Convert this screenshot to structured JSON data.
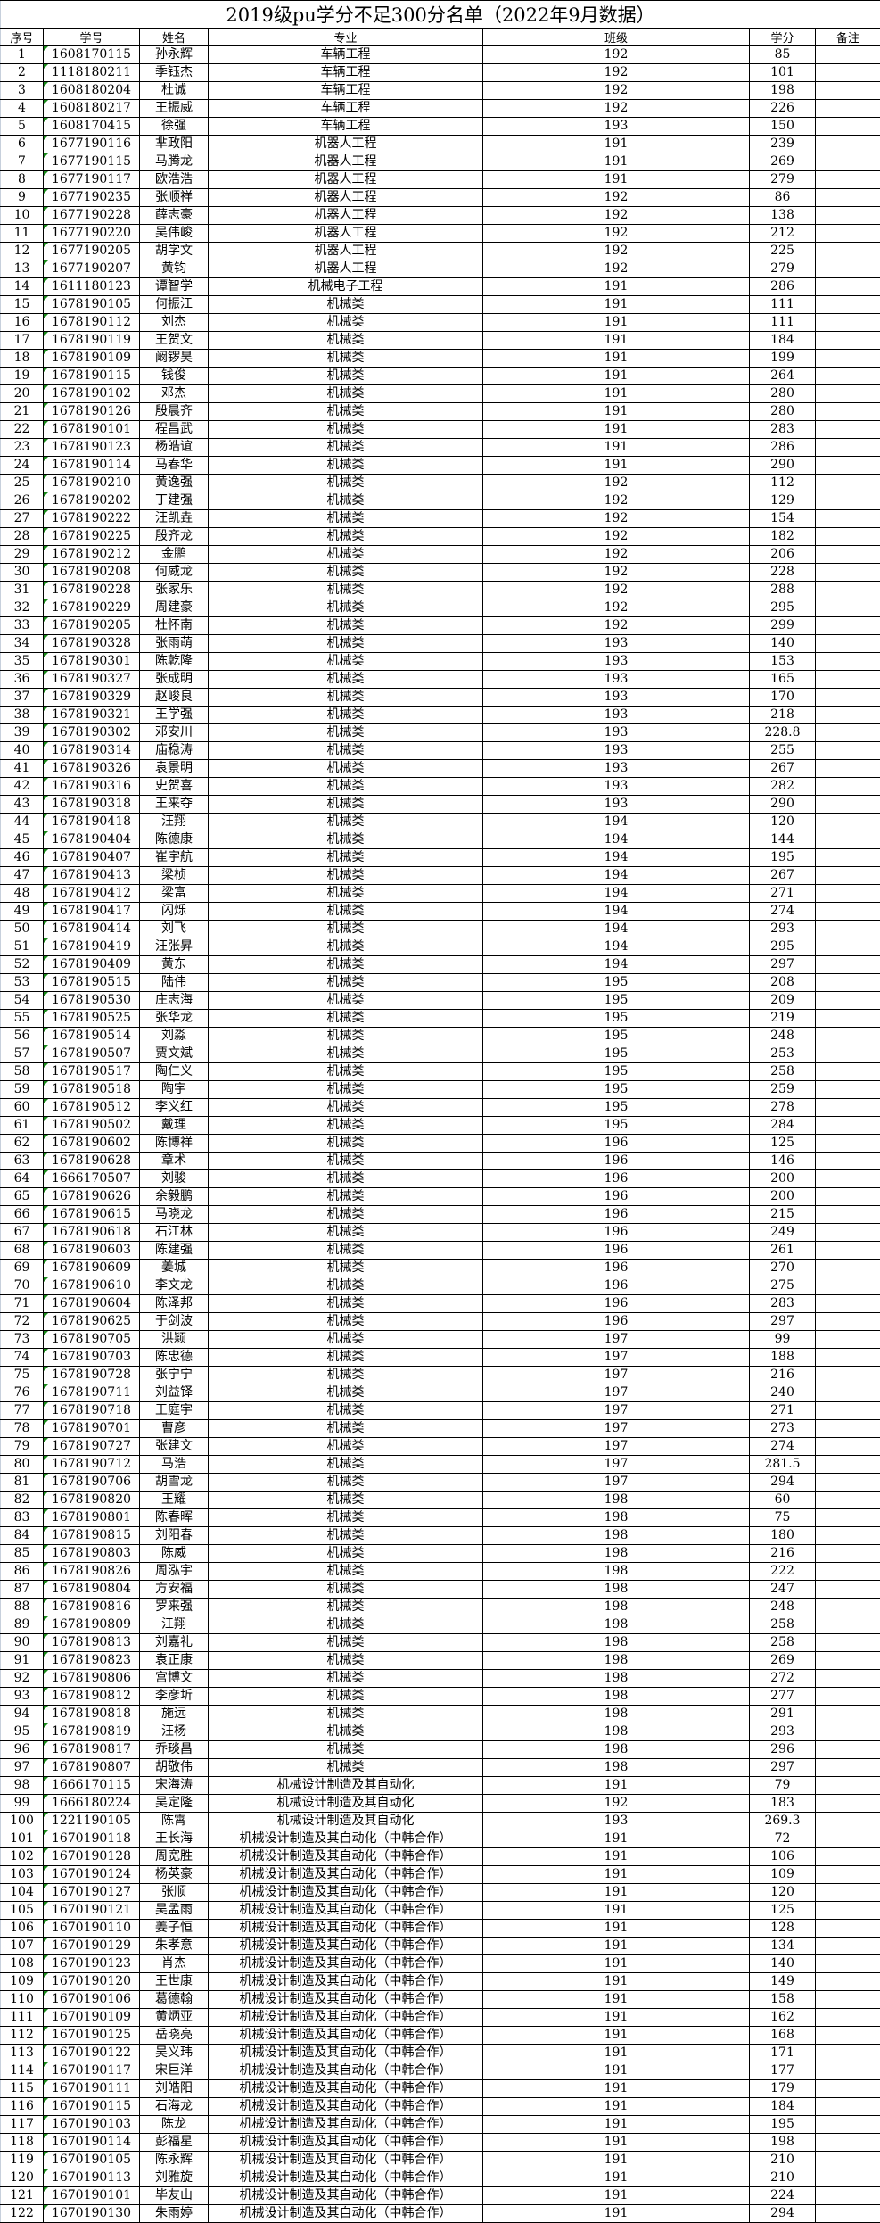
{
  "title": "2019级pu学分不足300分名单（2022年9月数据）",
  "headers": [
    "序号",
    "学号",
    "姓名",
    "专业",
    "班级",
    "学分",
    "备注"
  ],
  "rows": [
    [
      "1",
      "1608170115",
      "孙永辉",
      "车辆工程",
      "192",
      "85",
      ""
    ],
    [
      "2",
      "1118180211",
      "季钰杰",
      "车辆工程",
      "192",
      "101",
      ""
    ],
    [
      "3",
      "1608180204",
      "杜诚",
      "车辆工程",
      "192",
      "198",
      ""
    ],
    [
      "4",
      "1608180217",
      "王振威",
      "车辆工程",
      "192",
      "226",
      ""
    ],
    [
      "5",
      "1608170415",
      "徐强",
      "车辆工程",
      "193",
      "150",
      ""
    ],
    [
      "6",
      "1677190116",
      "芈政阳",
      "机器人工程",
      "191",
      "239",
      ""
    ],
    [
      "7",
      "1677190115",
      "马腾龙",
      "机器人工程",
      "191",
      "269",
      ""
    ],
    [
      "8",
      "1677190117",
      "欧浩浩",
      "机器人工程",
      "191",
      "279",
      ""
    ],
    [
      "9",
      "1677190235",
      "张顺祥",
      "机器人工程",
      "192",
      "86",
      ""
    ],
    [
      "10",
      "1677190228",
      "薛志豪",
      "机器人工程",
      "192",
      "138",
      ""
    ],
    [
      "11",
      "1677190220",
      "吴伟峻",
      "机器人工程",
      "192",
      "212",
      ""
    ],
    [
      "12",
      "1677190205",
      "胡学文",
      "机器人工程",
      "192",
      "225",
      ""
    ],
    [
      "13",
      "1677190207",
      "黄钧",
      "机器人工程",
      "192",
      "279",
      ""
    ],
    [
      "14",
      "1611180123",
      "谭智学",
      "机械电子工程",
      "191",
      "286",
      ""
    ],
    [
      "15",
      "1678190105",
      "何振江",
      "机械类",
      "191",
      "111",
      ""
    ],
    [
      "16",
      "1678190112",
      "刘杰",
      "机械类",
      "191",
      "111",
      ""
    ],
    [
      "17",
      "1678190119",
      "王贺文",
      "机械类",
      "191",
      "184",
      ""
    ],
    [
      "18",
      "1678190109",
      "阚锣昊",
      "机械类",
      "191",
      "199",
      ""
    ],
    [
      "19",
      "1678190115",
      "钱俊",
      "机械类",
      "191",
      "264",
      ""
    ],
    [
      "20",
      "1678190102",
      "邓杰",
      "机械类",
      "191",
      "280",
      ""
    ],
    [
      "21",
      "1678190126",
      "殷晨齐",
      "机械类",
      "191",
      "280",
      ""
    ],
    [
      "22",
      "1678190101",
      "程昌武",
      "机械类",
      "191",
      "283",
      ""
    ],
    [
      "23",
      "1678190123",
      "杨皓谊",
      "机械类",
      "191",
      "286",
      ""
    ],
    [
      "24",
      "1678190114",
      "马春华",
      "机械类",
      "191",
      "290",
      ""
    ],
    [
      "25",
      "1678190210",
      "黄逸强",
      "机械类",
      "192",
      "112",
      ""
    ],
    [
      "26",
      "1678190202",
      "丁建强",
      "机械类",
      "192",
      "129",
      ""
    ],
    [
      "27",
      "1678190222",
      "汪凯垚",
      "机械类",
      "192",
      "154",
      ""
    ],
    [
      "28",
      "1678190225",
      "殷齐龙",
      "机械类",
      "192",
      "182",
      ""
    ],
    [
      "29",
      "1678190212",
      "金鹏",
      "机械类",
      "192",
      "206",
      ""
    ],
    [
      "30",
      "1678190208",
      "何威龙",
      "机械类",
      "192",
      "228",
      ""
    ],
    [
      "31",
      "1678190228",
      "张家乐",
      "机械类",
      "192",
      "288",
      ""
    ],
    [
      "32",
      "1678190229",
      "周建豪",
      "机械类",
      "192",
      "295",
      ""
    ],
    [
      "33",
      "1678190205",
      "杜怀南",
      "机械类",
      "192",
      "299",
      ""
    ],
    [
      "34",
      "1678190328",
      "张雨萌",
      "机械类",
      "193",
      "140",
      ""
    ],
    [
      "35",
      "1678190301",
      "陈乾隆",
      "机械类",
      "193",
      "153",
      ""
    ],
    [
      "36",
      "1678190327",
      "张成明",
      "机械类",
      "193",
      "165",
      ""
    ],
    [
      "37",
      "1678190329",
      "赵峻良",
      "机械类",
      "193",
      "170",
      ""
    ],
    [
      "38",
      "1678190321",
      "王学强",
      "机械类",
      "193",
      "218",
      ""
    ],
    [
      "39",
      "1678190302",
      "邓安川",
      "机械类",
      "193",
      "228.8",
      ""
    ],
    [
      "40",
      "1678190314",
      "庙稳涛",
      "机械类",
      "193",
      "255",
      ""
    ],
    [
      "41",
      "1678190326",
      "袁景明",
      "机械类",
      "193",
      "267",
      ""
    ],
    [
      "42",
      "1678190316",
      "史贺喜",
      "机械类",
      "193",
      "282",
      ""
    ],
    [
      "43",
      "1678190318",
      "王来夺",
      "机械类",
      "193",
      "290",
      ""
    ],
    [
      "44",
      "1678190418",
      "汪翔",
      "机械类",
      "194",
      "120",
      ""
    ],
    [
      "45",
      "1678190404",
      "陈德康",
      "机械类",
      "194",
      "144",
      ""
    ],
    [
      "46",
      "1678190407",
      "崔宇航",
      "机械类",
      "194",
      "195",
      ""
    ],
    [
      "47",
      "1678190413",
      "梁桢",
      "机械类",
      "194",
      "267",
      ""
    ],
    [
      "48",
      "1678190412",
      "梁富",
      "机械类",
      "194",
      "271",
      ""
    ],
    [
      "49",
      "1678190417",
      "闪烁",
      "机械类",
      "194",
      "274",
      ""
    ],
    [
      "50",
      "1678190414",
      "刘飞",
      "机械类",
      "194",
      "293",
      ""
    ],
    [
      "51",
      "1678190419",
      "汪张昇",
      "机械类",
      "194",
      "295",
      ""
    ],
    [
      "52",
      "1678190409",
      "黄东",
      "机械类",
      "194",
      "297",
      ""
    ],
    [
      "53",
      "1678190515",
      "陆伟",
      "机械类",
      "195",
      "208",
      ""
    ],
    [
      "54",
      "1678190530",
      "庄志海",
      "机械类",
      "195",
      "209",
      ""
    ],
    [
      "55",
      "1678190525",
      "张华龙",
      "机械类",
      "195",
      "219",
      ""
    ],
    [
      "56",
      "1678190514",
      "刘淼",
      "机械类",
      "195",
      "248",
      ""
    ],
    [
      "57",
      "1678190507",
      "贾文斌",
      "机械类",
      "195",
      "253",
      ""
    ],
    [
      "58",
      "1678190517",
      "陶仁义",
      "机械类",
      "195",
      "258",
      ""
    ],
    [
      "59",
      "1678190518",
      "陶宇",
      "机械类",
      "195",
      "259",
      ""
    ],
    [
      "60",
      "1678190512",
      "李义红",
      "机械类",
      "195",
      "278",
      ""
    ],
    [
      "61",
      "1678190502",
      "戴理",
      "机械类",
      "195",
      "284",
      ""
    ],
    [
      "62",
      "1678190602",
      "陈博祥",
      "机械类",
      "196",
      "125",
      ""
    ],
    [
      "63",
      "1678190628",
      "章术",
      "机械类",
      "196",
      "146",
      ""
    ],
    [
      "64",
      "1666170507",
      "刘骏",
      "机械类",
      "196",
      "200",
      ""
    ],
    [
      "65",
      "1678190626",
      "余毅鹏",
      "机械类",
      "196",
      "200",
      ""
    ],
    [
      "66",
      "1678190615",
      "马晓龙",
      "机械类",
      "196",
      "215",
      ""
    ],
    [
      "67",
      "1678190618",
      "石江林",
      "机械类",
      "196",
      "249",
      ""
    ],
    [
      "68",
      "1678190603",
      "陈建强",
      "机械类",
      "196",
      "261",
      ""
    ],
    [
      "69",
      "1678190609",
      "姜城",
      "机械类",
      "196",
      "270",
      ""
    ],
    [
      "70",
      "1678190610",
      "李文龙",
      "机械类",
      "196",
      "275",
      ""
    ],
    [
      "71",
      "1678190604",
      "陈泽邦",
      "机械类",
      "196",
      "283",
      ""
    ],
    [
      "72",
      "1678190625",
      "于剑波",
      "机械类",
      "196",
      "297",
      ""
    ],
    [
      "73",
      "1678190705",
      "洪颖",
      "机械类",
      "197",
      "99",
      ""
    ],
    [
      "74",
      "1678190703",
      "陈忠德",
      "机械类",
      "197",
      "188",
      ""
    ],
    [
      "75",
      "1678190728",
      "张宁宁",
      "机械类",
      "197",
      "216",
      ""
    ],
    [
      "76",
      "1678190711",
      "刘益铎",
      "机械类",
      "197",
      "240",
      ""
    ],
    [
      "77",
      "1678190718",
      "王庭宇",
      "机械类",
      "197",
      "271",
      ""
    ],
    [
      "78",
      "1678190701",
      "曹彦",
      "机械类",
      "197",
      "273",
      ""
    ],
    [
      "79",
      "1678190727",
      "张建文",
      "机械类",
      "197",
      "274",
      ""
    ],
    [
      "80",
      "1678190712",
      "马浩",
      "机械类",
      "197",
      "281.5",
      ""
    ],
    [
      "81",
      "1678190706",
      "胡雪龙",
      "机械类",
      "197",
      "294",
      ""
    ],
    [
      "82",
      "1678190820",
      "王耀",
      "机械类",
      "198",
      "60",
      ""
    ],
    [
      "83",
      "1678190801",
      "陈春晖",
      "机械类",
      "198",
      "75",
      ""
    ],
    [
      "84",
      "1678190815",
      "刘阳春",
      "机械类",
      "198",
      "180",
      ""
    ],
    [
      "85",
      "1678190803",
      "陈威",
      "机械类",
      "198",
      "216",
      ""
    ],
    [
      "86",
      "1678190826",
      "周泓宇",
      "机械类",
      "198",
      "222",
      ""
    ],
    [
      "87",
      "1678190804",
      "方安福",
      "机械类",
      "198",
      "247",
      ""
    ],
    [
      "88",
      "1678190816",
      "罗来强",
      "机械类",
      "198",
      "248",
      ""
    ],
    [
      "89",
      "1678190809",
      "江翔",
      "机械类",
      "198",
      "258",
      ""
    ],
    [
      "90",
      "1678190813",
      "刘嘉礼",
      "机械类",
      "198",
      "258",
      ""
    ],
    [
      "91",
      "1678190823",
      "袁正康",
      "机械类",
      "198",
      "269",
      ""
    ],
    [
      "92",
      "1678190806",
      "宫博文",
      "机械类",
      "198",
      "272",
      ""
    ],
    [
      "93",
      "1678190812",
      "李彦圻",
      "机械类",
      "198",
      "277",
      ""
    ],
    [
      "94",
      "1678190818",
      "施远",
      "机械类",
      "198",
      "291",
      ""
    ],
    [
      "95",
      "1678190819",
      "汪杨",
      "机械类",
      "198",
      "293",
      ""
    ],
    [
      "96",
      "1678190817",
      "乔琰昌",
      "机械类",
      "198",
      "296",
      ""
    ],
    [
      "97",
      "1678190807",
      "胡敬伟",
      "机械类",
      "198",
      "297",
      ""
    ],
    [
      "98",
      "1666170115",
      "宋海涛",
      "机械设计制造及其自动化",
      "191",
      "79",
      ""
    ],
    [
      "99",
      "1666180224",
      "吴定隆",
      "机械设计制造及其自动化",
      "192",
      "183",
      ""
    ],
    [
      "100",
      "1221190105",
      "陈霄",
      "机械设计制造及其自动化",
      "193",
      "269.3",
      ""
    ],
    [
      "101",
      "1670190118",
      "王长海",
      "机械设计制造及其自动化（中韩合作）",
      "191",
      "72",
      ""
    ],
    [
      "102",
      "1670190128",
      "周宽胜",
      "机械设计制造及其自动化（中韩合作）",
      "191",
      "106",
      ""
    ],
    [
      "103",
      "1670190124",
      "杨英豪",
      "机械设计制造及其自动化（中韩合作）",
      "191",
      "109",
      ""
    ],
    [
      "104",
      "1670190127",
      "张顺",
      "机械设计制造及其自动化（中韩合作）",
      "191",
      "120",
      ""
    ],
    [
      "105",
      "1670190121",
      "吴孟雨",
      "机械设计制造及其自动化（中韩合作）",
      "191",
      "125",
      ""
    ],
    [
      "106",
      "1670190110",
      "姜子恒",
      "机械设计制造及其自动化（中韩合作）",
      "191",
      "128",
      ""
    ],
    [
      "107",
      "1670190129",
      "朱孝意",
      "机械设计制造及其自动化（中韩合作）",
      "191",
      "134",
      ""
    ],
    [
      "108",
      "1670190123",
      "肖杰",
      "机械设计制造及其自动化（中韩合作）",
      "191",
      "140",
      ""
    ],
    [
      "109",
      "1670190120",
      "王世康",
      "机械设计制造及其自动化（中韩合作）",
      "191",
      "149",
      ""
    ],
    [
      "110",
      "1670190106",
      "葛德翰",
      "机械设计制造及其自动化（中韩合作）",
      "191",
      "158",
      ""
    ],
    [
      "111",
      "1670190109",
      "黄炳亚",
      "机械设计制造及其自动化（中韩合作）",
      "191",
      "162",
      ""
    ],
    [
      "112",
      "1670190125",
      "岳晓亮",
      "机械设计制造及其自动化（中韩合作）",
      "191",
      "168",
      ""
    ],
    [
      "113",
      "1670190122",
      "吴义玮",
      "机械设计制造及其自动化（中韩合作）",
      "191",
      "171",
      ""
    ],
    [
      "114",
      "1670190117",
      "宋巨洋",
      "机械设计制造及其自动化（中韩合作）",
      "191",
      "177",
      ""
    ],
    [
      "115",
      "1670190111",
      "刘皓阳",
      "机械设计制造及其自动化（中韩合作）",
      "191",
      "179",
      ""
    ],
    [
      "116",
      "1670190115",
      "石海龙",
      "机械设计制造及其自动化（中韩合作）",
      "191",
      "184",
      ""
    ],
    [
      "117",
      "1670190103",
      "陈龙",
      "机械设计制造及其自动化（中韩合作）",
      "191",
      "195",
      ""
    ],
    [
      "118",
      "1670190114",
      "彭福星",
      "机械设计制造及其自动化（中韩合作）",
      "191",
      "198",
      ""
    ],
    [
      "119",
      "1670190105",
      "陈永辉",
      "机械设计制造及其自动化（中韩合作）",
      "191",
      "210",
      ""
    ],
    [
      "120",
      "1670190113",
      "刘雅旋",
      "机械设计制造及其自动化（中韩合作）",
      "191",
      "210",
      ""
    ],
    [
      "121",
      "1670190101",
      "毕友山",
      "机械设计制造及其自动化（中韩合作）",
      "191",
      "224",
      ""
    ],
    [
      "122",
      "1670190130",
      "朱雨婷",
      "机械设计制造及其自动化（中韩合作）",
      "191",
      "294",
      ""
    ]
  ]
}
